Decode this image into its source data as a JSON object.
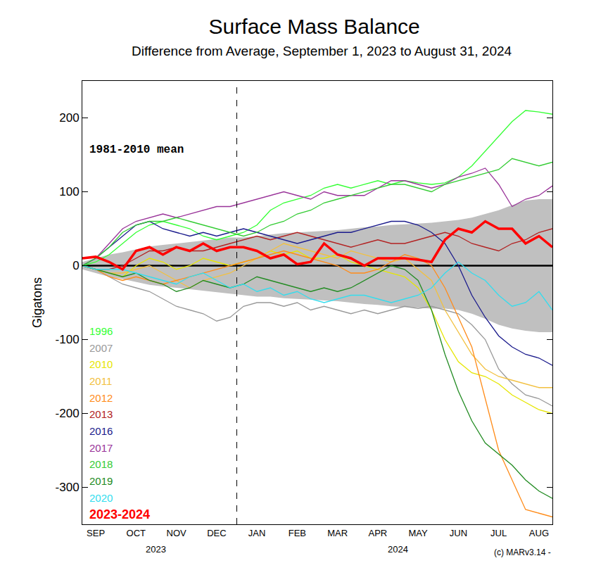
{
  "chart_data": {
    "type": "line",
    "title": "Surface Mass Balance",
    "subtitle": "Difference from Average, September 1, 2023 to August 31, 2024",
    "y_label": "Gigatons",
    "categories": [
      null,
      "SEP",
      null,
      null,
      "OCT",
      null,
      null,
      "NOV",
      null,
      null,
      "DEC",
      null,
      null,
      "JAN",
      null,
      null,
      "FEB",
      null,
      null,
      "MAR",
      null,
      null,
      "APR",
      null,
      null,
      "MAY",
      null,
      null,
      "JUN",
      null,
      null,
      "JUL",
      null,
      null,
      "AUG",
      null
    ],
    "ylim": [
      -350,
      250
    ],
    "yticks": [
      -300,
      -200,
      -100,
      0,
      100,
      200
    ],
    "grid": false,
    "legend": "lower left",
    "band": {
      "color": "#c0c0c0",
      "lower": [
        -5,
        -10,
        -15,
        -18,
        -22,
        -26,
        -28,
        -30,
        -32,
        -34,
        -36,
        -38,
        -40,
        -42,
        -42,
        -44,
        -45,
        -46,
        -47,
        -48,
        -50,
        -52,
        -53,
        -55,
        -56,
        -57,
        -58,
        -58,
        -60,
        -65,
        -72,
        -80,
        -85,
        -88,
        -90,
        -90
      ],
      "upper": [
        5,
        10,
        15,
        18,
        22,
        26,
        28,
        30,
        32,
        34,
        36,
        38,
        38,
        40,
        42,
        44,
        45,
        46,
        47,
        48,
        50,
        52,
        53,
        55,
        56,
        57,
        58,
        60,
        62,
        65,
        70,
        75,
        82,
        88,
        90,
        90
      ]
    },
    "mean": {
      "name": "1981-2010 mean",
      "color": "#000000",
      "values": [
        0,
        0,
        0,
        0,
        0,
        0,
        0,
        0,
        0,
        0,
        0,
        0,
        0,
        0,
        0,
        0,
        0,
        0,
        0,
        0,
        0,
        0,
        0,
        0,
        0,
        0,
        0,
        0,
        0,
        0,
        0,
        0,
        0,
        0,
        0,
        0
      ]
    },
    "series": [
      {
        "name": "1996",
        "color": "#33ff33",
        "line_style": "solid",
        "values": [
          0,
          5,
          15,
          30,
          45,
          55,
          60,
          55,
          50,
          40,
          35,
          40,
          45,
          55,
          75,
          85,
          90,
          95,
          105,
          110,
          105,
          110,
          115,
          110,
          115,
          112,
          110,
          112,
          120,
          135,
          155,
          175,
          195,
          210,
          208,
          205
        ]
      },
      {
        "name": "2007",
        "color": "#999999",
        "line_style": "solid",
        "values": [
          0,
          -5,
          -15,
          -25,
          -30,
          -35,
          -45,
          -55,
          -60,
          -65,
          -75,
          -70,
          -55,
          -50,
          -50,
          -55,
          -50,
          -60,
          -55,
          -60,
          -65,
          -60,
          -65,
          -60,
          -55,
          -58,
          -55,
          -60,
          -65,
          -80,
          -100,
          -140,
          -160,
          -175,
          -180,
          -190
        ]
      },
      {
        "name": "2010",
        "color": "#e6e600",
        "line_style": "solid",
        "values": [
          0,
          -5,
          -10,
          -15,
          0,
          10,
          5,
          -5,
          0,
          10,
          5,
          0,
          5,
          10,
          20,
          15,
          20,
          10,
          10,
          15,
          5,
          0,
          -5,
          -10,
          -15,
          -30,
          -60,
          -100,
          -130,
          -145,
          -150,
          -160,
          -175,
          -185,
          -195,
          -200
        ]
      },
      {
        "name": "2011",
        "color": "#f2c040",
        "line_style": "solid",
        "values": [
          0,
          -5,
          -10,
          -10,
          -5,
          0,
          -10,
          -20,
          -30,
          -20,
          -15,
          -10,
          0,
          10,
          20,
          30,
          25,
          20,
          15,
          10,
          20,
          15,
          10,
          5,
          10,
          -5,
          -20,
          -60,
          -90,
          -120,
          -140,
          -150,
          -155,
          -160,
          -165,
          -165
        ]
      },
      {
        "name": "2012",
        "color": "#ff8c1a",
        "line_style": "solid",
        "values": [
          0,
          -5,
          -15,
          -20,
          -15,
          -20,
          -25,
          -20,
          -15,
          -10,
          -5,
          0,
          5,
          10,
          15,
          20,
          15,
          10,
          5,
          0,
          -10,
          -10,
          -5,
          5,
          15,
          10,
          0,
          -30,
          -70,
          -110,
          -180,
          -250,
          -290,
          -330,
          -335,
          -340
        ]
      },
      {
        "name": "2013",
        "color": "#b22222",
        "line_style": "solid",
        "values": [
          0,
          -5,
          -5,
          0,
          10,
          20,
          20,
          25,
          20,
          20,
          25,
          30,
          35,
          40,
          35,
          40,
          45,
          40,
          35,
          30,
          25,
          30,
          35,
          30,
          30,
          35,
          40,
          45,
          40,
          30,
          25,
          20,
          30,
          35,
          45,
          50
        ]
      },
      {
        "name": "2016",
        "color": "#1a1a8c",
        "line_style": "solid",
        "values": [
          0,
          10,
          25,
          40,
          55,
          60,
          50,
          45,
          40,
          45,
          40,
          45,
          50,
          45,
          40,
          35,
          30,
          35,
          40,
          45,
          45,
          50,
          55,
          60,
          60,
          55,
          45,
          30,
          0,
          -40,
          -70,
          -95,
          -110,
          -120,
          -125,
          -135
        ]
      },
      {
        "name": "2017",
        "color": "#993399",
        "line_style": "solid",
        "values": [
          0,
          10,
          30,
          50,
          60,
          65,
          70,
          65,
          70,
          75,
          80,
          80,
          85,
          90,
          95,
          100,
          95,
          90,
          100,
          95,
          95,
          95,
          105,
          115,
          115,
          110,
          105,
          110,
          120,
          125,
          132,
          110,
          80,
          90,
          95,
          108
        ]
      },
      {
        "name": "2018",
        "color": "#33cc33",
        "line_style": "solid",
        "values": [
          0,
          10,
          25,
          45,
          55,
          60,
          60,
          65,
          60,
          55,
          50,
          45,
          40,
          45,
          55,
          60,
          70,
          75,
          85,
          90,
          95,
          100,
          105,
          110,
          110,
          105,
          100,
          110,
          115,
          120,
          125,
          130,
          145,
          140,
          135,
          140
        ]
      },
      {
        "name": "2019",
        "color": "#228b22",
        "line_style": "solid",
        "values": [
          0,
          -5,
          -10,
          -15,
          -10,
          -20,
          -25,
          -35,
          -30,
          -20,
          -25,
          -30,
          -25,
          -15,
          -20,
          -25,
          -30,
          -35,
          -30,
          -35,
          -30,
          -20,
          -10,
          0,
          -5,
          -20,
          -60,
          -120,
          -170,
          -210,
          -240,
          -255,
          -270,
          -290,
          -305,
          -315
        ]
      },
      {
        "name": "2020",
        "color": "#33ddee",
        "line_style": "solid",
        "values": [
          0,
          -5,
          -5,
          -5,
          -10,
          -15,
          -20,
          -25,
          -15,
          -10,
          -20,
          -30,
          -25,
          -35,
          -30,
          -40,
          -35,
          -45,
          -50,
          -45,
          -40,
          -40,
          -45,
          -50,
          -45,
          -40,
          -30,
          -10,
          5,
          -10,
          -20,
          -40,
          -55,
          -50,
          -35,
          -60
        ]
      },
      {
        "name": "2023-2024",
        "color": "#ff0000",
        "line_style": "thick",
        "values": [
          10,
          12,
          5,
          -5,
          20,
          25,
          15,
          25,
          20,
          30,
          20,
          25,
          25,
          20,
          10,
          15,
          2,
          5,
          30,
          15,
          10,
          0,
          10,
          10,
          10,
          8,
          5,
          35,
          50,
          45,
          60,
          50,
          50,
          30,
          40,
          25
        ]
      }
    ],
    "annotations": [
      {
        "text": "2023",
        "span": [
          "SEP",
          "DEC"
        ]
      },
      {
        "text": "2024",
        "span": [
          "JAN",
          "AUG"
        ]
      },
      {
        "text": "(c) MARv3.14 -"
      }
    ]
  }
}
